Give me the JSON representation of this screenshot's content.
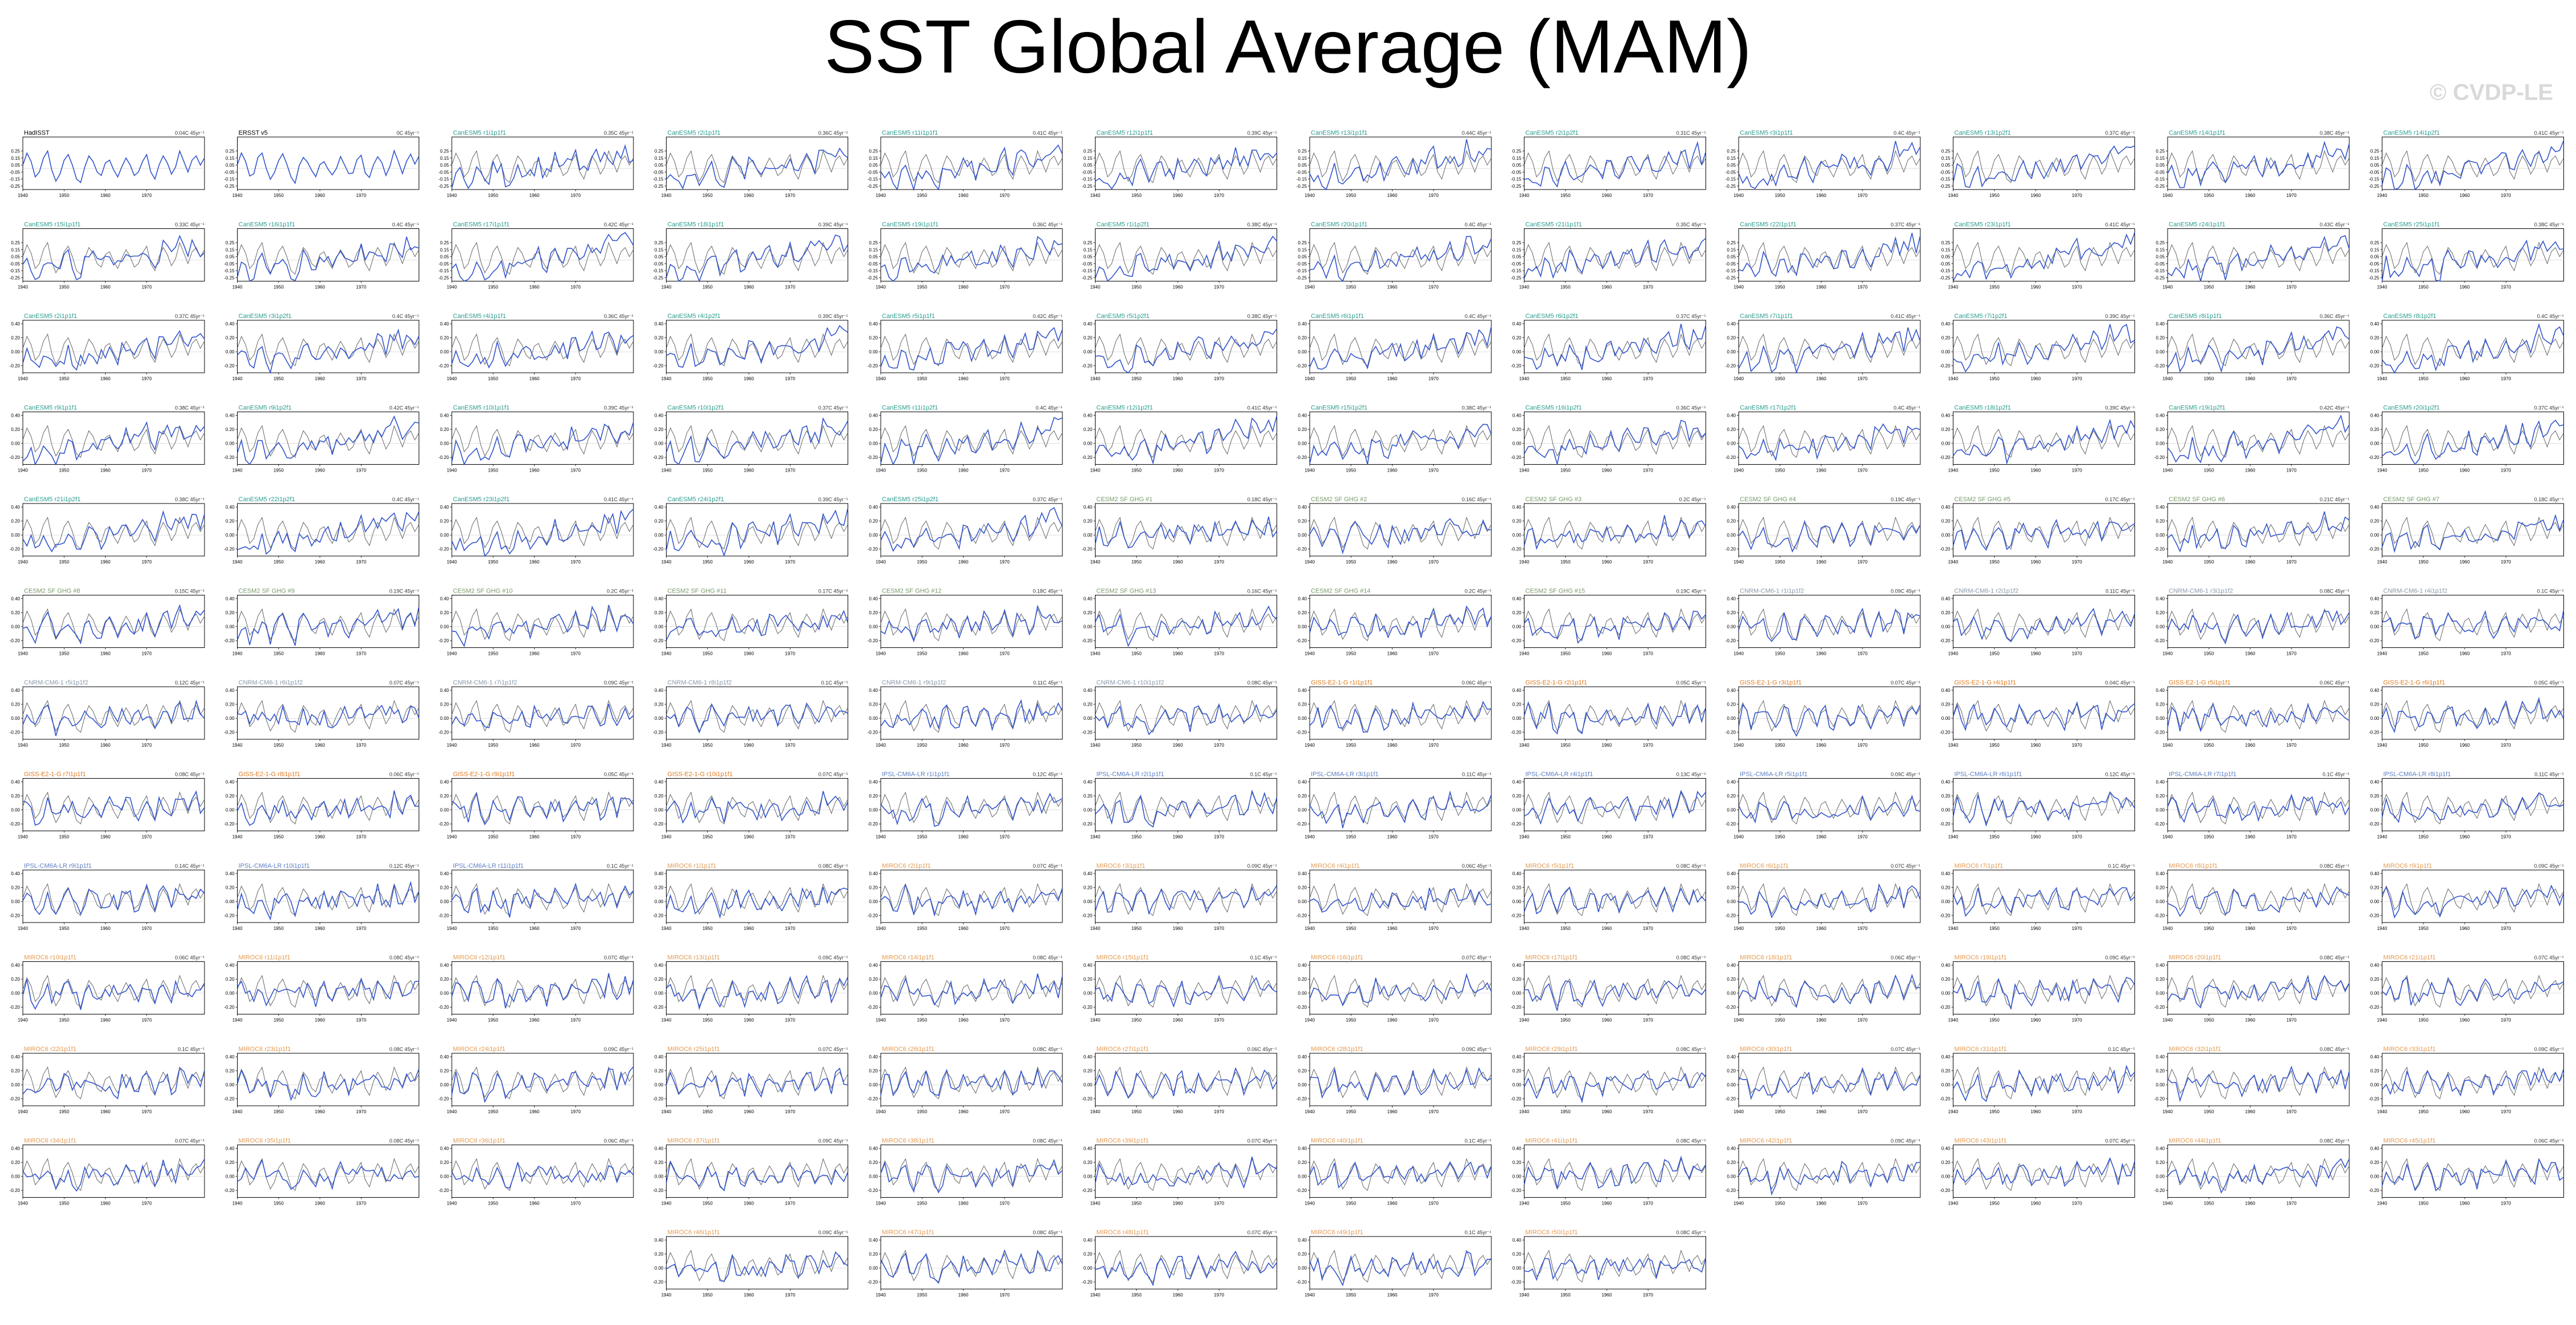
{
  "title": "SST Global Average (MAM)",
  "watermark": "© CVDP-LE",
  "colors": {
    "model": "#3355cc",
    "obs": "#666666",
    "title_obs": "#000000",
    "title_cesm2": "#2a9d8f",
    "title_cesm1": "#7a9a6a",
    "title_cnrm": "#8899aa",
    "title_giss": "#e07a1f",
    "title_ipsl": "#5b7fc4",
    "title_miroc": "#e39a52"
  },
  "chart_data": {
    "type": "line",
    "panel_layout": "12 columns x 13 rows; last row centered (2 panels)",
    "xlim": [
      1940,
      1984
    ],
    "xticks": [
      "1940",
      "1950",
      "1960",
      "1970"
    ],
    "ylim": [
      -0.3,
      0.45
    ],
    "yticks_low": [
      "0.25",
      "0.15",
      "0.05",
      "-0.05",
      "-0.15",
      "-0.25"
    ],
    "yticks_high": [
      "0.40",
      "0.20",
      "0.00",
      "-0.20"
    ],
    "observed_reference": {
      "name": "HadISST",
      "start_year": 1940,
      "end_year": 1984,
      "values": [
        0.05,
        0.22,
        0.1,
        -0.12,
        -0.05,
        0.15,
        0.25,
        -0.02,
        -0.18,
        -0.08,
        0.12,
        0.2,
        0.05,
        -0.15,
        -0.2,
        0.02,
        0.18,
        0.1,
        -0.05,
        -0.1,
        0.08,
        0.12,
        -0.02,
        -0.12,
        0.03,
        0.15,
        0.05,
        -0.1,
        -0.05,
        0.1,
        0.2,
        -0.05,
        -0.15,
        0.05,
        0.18,
        0.08,
        -0.08,
        0.02,
        0.25,
        0.1,
        -0.05,
        0.12,
        0.18,
        0.05,
        0.15
      ]
    },
    "panels": [
      {
        "title": "HadISST",
        "trend": "0.04C 45yr⁻¹",
        "group": "obs"
      },
      {
        "title": "ERSST v5",
        "trend": "0C 45yr⁻¹",
        "group": "obs"
      },
      {
        "title": "CanESM5 r1i1p1f1",
        "trend": "0.35C 45yr⁻¹",
        "group": "cesm2"
      },
      {
        "title": "CanESM5 r2i1p1f1",
        "trend": "0.36C 45yr⁻¹",
        "group": "cesm2"
      },
      {
        "title": "CanESM5 r11i1p1f1",
        "trend": "0.41C 45yr⁻¹",
        "group": "cesm2"
      },
      {
        "title": "CanESM5 r12i1p1f1",
        "trend": "0.39C 45yr⁻¹",
        "group": "cesm2"
      },
      {
        "title": "CanESM5 r13i1p1f1",
        "trend": "0.44C 45yr⁻¹",
        "group": "cesm2"
      },
      {
        "title": "CanESM5 r2i1p2f1",
        "trend": "0.31C 45yr⁻¹",
        "group": "cesm2"
      },
      {
        "title": "CanESM5 r3i1p1f1",
        "trend": "0.4C 45yr⁻¹",
        "group": "cesm2"
      },
      {
        "title": "CanESM5 r13i1p2f1",
        "trend": "0.37C 45yr⁻¹",
        "group": "cesm2"
      },
      {
        "title": "CanESM5 r14i1p1f1",
        "trend": "0.38C 45yr⁻¹",
        "group": "cesm2"
      },
      {
        "title": "CanESM5 r14i1p2f1",
        "trend": "0.41C 45yr⁻¹",
        "group": "cesm2"
      },
      {
        "title": "CanESM5 r15i1p1f1",
        "trend": "0.33C 45yr⁻¹",
        "group": "cesm2"
      },
      {
        "title": "CanESM5 r16i1p1f1",
        "trend": "0.4C 45yr⁻¹",
        "group": "cesm2"
      },
      {
        "title": "CanESM5 r17i1p1f1",
        "trend": "0.42C 45yr⁻¹",
        "group": "cesm2"
      },
      {
        "title": "CanESM5 r18i1p1f1",
        "trend": "0.39C 45yr⁻¹",
        "group": "cesm2"
      },
      {
        "title": "CanESM5 r19i1p1f1",
        "trend": "0.36C 45yr⁻¹",
        "group": "cesm2"
      },
      {
        "title": "CanESM5 r1i1p2f1",
        "trend": "0.38C 45yr⁻¹",
        "group": "cesm2"
      },
      {
        "title": "CanESM5 r20i1p1f1",
        "trend": "0.4C 45yr⁻¹",
        "group": "cesm2"
      },
      {
        "title": "CanESM5 r21i1p1f1",
        "trend": "0.35C 45yr⁻¹",
        "group": "cesm2"
      },
      {
        "title": "CanESM5 r22i1p1f1",
        "trend": "0.37C 45yr⁻¹",
        "group": "cesm2"
      },
      {
        "title": "CanESM5 r23i1p1f1",
        "trend": "0.41C 45yr⁻¹",
        "group": "cesm2"
      },
      {
        "title": "CanESM5 r24i1p1f1",
        "trend": "0.43C 45yr⁻¹",
        "group": "cesm2"
      },
      {
        "title": "CanESM5 r25i1p1f1",
        "trend": "0.38C 45yr⁻¹",
        "group": "cesm2"
      },
      {
        "title": "CanESM5 r2i1p1f1",
        "trend": "0.37C 45yr⁻¹",
        "group": "cesm2"
      },
      {
        "title": "CanESM5 r3i1p2f1",
        "trend": "0.4C 45yr⁻¹",
        "group": "cesm2"
      },
      {
        "title": "CanESM5 r4i1p1f1",
        "trend": "0.36C 45yr⁻¹",
        "group": "cesm2"
      },
      {
        "title": "CanESM5 r4i1p2f1",
        "trend": "0.39C 45yr⁻¹",
        "group": "cesm2"
      },
      {
        "title": "CanESM5 r5i1p1f1",
        "trend": "0.42C 45yr⁻¹",
        "group": "cesm2"
      },
      {
        "title": "CanESM5 r5i1p2f1",
        "trend": "0.38C 45yr⁻¹",
        "group": "cesm2"
      },
      {
        "title": "CanESM5 r6i1p1f1",
        "trend": "0.4C 45yr⁻¹",
        "group": "cesm2"
      },
      {
        "title": "CanESM5 r6i1p2f1",
        "trend": "0.37C 45yr⁻¹",
        "group": "cesm2"
      },
      {
        "title": "CanESM5 r7i1p1f1",
        "trend": "0.41C 45yr⁻¹",
        "group": "cesm2"
      },
      {
        "title": "CanESM5 r7i1p2f1",
        "trend": "0.39C 45yr⁻¹",
        "group": "cesm2"
      },
      {
        "title": "CanESM5 r8i1p1f1",
        "trend": "0.36C 45yr⁻¹",
        "group": "cesm2"
      },
      {
        "title": "CanESM5 r8i1p2f1",
        "trend": "0.4C 45yr⁻¹",
        "group": "cesm2"
      },
      {
        "title": "CanESM5 r9i1p1f1",
        "trend": "0.38C 45yr⁻¹",
        "group": "cesm2"
      },
      {
        "title": "CanESM5 r9i1p2f1",
        "trend": "0.42C 45yr⁻¹",
        "group": "cesm2"
      },
      {
        "title": "CanESM5 r10i1p1f1",
        "trend": "0.39C 45yr⁻¹",
        "group": "cesm2"
      },
      {
        "title": "CanESM5 r10i1p2f1",
        "trend": "0.37C 45yr⁻¹",
        "group": "cesm2"
      },
      {
        "title": "CanESM5 r11i1p2f1",
        "trend": "0.4C 45yr⁻¹",
        "group": "cesm2"
      },
      {
        "title": "CanESM5 r12i1p2f1",
        "trend": "0.41C 45yr⁻¹",
        "group": "cesm2"
      },
      {
        "title": "CanESM5 r15i1p2f1",
        "trend": "0.38C 45yr⁻¹",
        "group": "cesm2"
      },
      {
        "title": "CanESM5 r16i1p2f1",
        "trend": "0.36C 45yr⁻¹",
        "group": "cesm2"
      },
      {
        "title": "CanESM5 r17i1p2f1",
        "trend": "0.4C 45yr⁻¹",
        "group": "cesm2"
      },
      {
        "title": "CanESM5 r18i1p2f1",
        "trend": "0.39C 45yr⁻¹",
        "group": "cesm2"
      },
      {
        "title": "CanESM5 r19i1p2f1",
        "trend": "0.42C 45yr⁻¹",
        "group": "cesm2"
      },
      {
        "title": "CanESM5 r20i1p2f1",
        "trend": "0.37C 45yr⁻¹",
        "group": "cesm2"
      },
      {
        "title": "CanESM5 r21i1p2f1",
        "trend": "0.38C 45yr⁻¹",
        "group": "cesm2"
      },
      {
        "title": "CanESM5 r22i1p2f1",
        "trend": "0.4C 45yr⁻¹",
        "group": "cesm2"
      },
      {
        "title": "CanESM5 r23i1p2f1",
        "trend": "0.41C 45yr⁻¹",
        "group": "cesm2"
      },
      {
        "title": "CanESM5 r24i1p2f1",
        "trend": "0.39C 45yr⁻¹",
        "group": "cesm2"
      },
      {
        "title": "CanESM5 r25i1p2f1",
        "trend": "0.37C 45yr⁻¹",
        "group": "cesm2"
      },
      {
        "title": "CESM2 SF GHG #1",
        "trend": "0.18C 45yr⁻¹",
        "group": "cesm1"
      },
      {
        "title": "CESM2 SF GHG #2",
        "trend": "0.16C 45yr⁻¹",
        "group": "cesm1"
      },
      {
        "title": "CESM2 SF GHG #3",
        "trend": "0.2C 45yr⁻¹",
        "group": "cesm1"
      },
      {
        "title": "CESM2 SF GHG #4",
        "trend": "0.19C 45yr⁻¹",
        "group": "cesm1"
      },
      {
        "title": "CESM2 SF GHG #5",
        "trend": "0.17C 45yr⁻¹",
        "group": "cesm1"
      },
      {
        "title": "CESM2 SF GHG #6",
        "trend": "0.21C 45yr⁻¹",
        "group": "cesm1"
      },
      {
        "title": "CESM2 SF GHG #7",
        "trend": "0.18C 45yr⁻¹",
        "group": "cesm1"
      },
      {
        "title": "CESM2 SF GHG #8",
        "trend": "0.15C 45yr⁻¹",
        "group": "cesm1"
      },
      {
        "title": "CESM2 SF GHG #9",
        "trend": "0.19C 45yr⁻¹",
        "group": "cesm1"
      },
      {
        "title": "CESM2 SF GHG #10",
        "trend": "0.2C 45yr⁻¹",
        "group": "cesm1"
      },
      {
        "title": "CESM2 SF GHG #11",
        "trend": "0.17C 45yr⁻¹",
        "group": "cesm1"
      },
      {
        "title": "CESM2 SF GHG #12",
        "trend": "0.18C 45yr⁻¹",
        "group": "cesm1"
      },
      {
        "title": "CESM2 SF GHG #13",
        "trend": "0.16C 45yr⁻¹",
        "group": "cesm1"
      },
      {
        "title": "CESM2 SF GHG #14",
        "trend": "0.2C 45yr⁻¹",
        "group": "cesm1"
      },
      {
        "title": "CESM2 SF GHG #15",
        "trend": "0.19C 45yr⁻¹",
        "group": "cesm1"
      },
      {
        "title": "CNRM-CM6-1 r1i1p1f2",
        "trend": "0.09C 45yr⁻¹",
        "group": "cnrm"
      },
      {
        "title": "CNRM-CM6-1 r2i1p1f2",
        "trend": "0.11C 45yr⁻¹",
        "group": "cnrm"
      },
      {
        "title": "CNRM-CM6-1 r3i1p1f2",
        "trend": "0.08C 45yr⁻¹",
        "group": "cnrm"
      },
      {
        "title": "CNRM-CM6-1 r4i1p1f2",
        "trend": "0.1C 45yr⁻¹",
        "group": "cnrm"
      },
      {
        "title": "CNRM-CM6-1 r5i1p1f2",
        "trend": "0.12C 45yr⁻¹",
        "group": "cnrm"
      },
      {
        "title": "CNRM-CM6-1 r6i1p1f2",
        "trend": "0.07C 45yr⁻¹",
        "group": "cnrm"
      },
      {
        "title": "CNRM-CM6-1 r7i1p1f2",
        "trend": "0.09C 45yr⁻¹",
        "group": "cnrm"
      },
      {
        "title": "CNRM-CM6-1 r8i1p1f2",
        "trend": "0.1C 45yr⁻¹",
        "group": "cnrm"
      },
      {
        "title": "CNRM-CM6-1 r9i1p1f2",
        "trend": "0.11C 45yr⁻¹",
        "group": "cnrm"
      },
      {
        "title": "CNRM-CM6-1 r10i1p1f2",
        "trend": "0.08C 45yr⁻¹",
        "group": "cnrm"
      },
      {
        "title": "GISS-E2-1-G r1i1p1f1",
        "trend": "0.06C 45yr⁻¹",
        "group": "giss"
      },
      {
        "title": "GISS-E2-1-G r2i1p1f1",
        "trend": "0.05C 45yr⁻¹",
        "group": "giss"
      },
      {
        "title": "GISS-E2-1-G r3i1p1f1",
        "trend": "0.07C 45yr⁻¹",
        "group": "giss"
      },
      {
        "title": "GISS-E2-1-G r4i1p1f1",
        "trend": "0.04C 45yr⁻¹",
        "group": "giss"
      },
      {
        "title": "GISS-E2-1-G r5i1p1f1",
        "trend": "0.06C 45yr⁻¹",
        "group": "giss"
      },
      {
        "title": "GISS-E2-1-G r6i1p1f1",
        "trend": "0.05C 45yr⁻¹",
        "group": "giss"
      },
      {
        "title": "GISS-E2-1-G r7i1p1f1",
        "trend": "0.08C 45yr⁻¹",
        "group": "giss"
      },
      {
        "title": "GISS-E2-1-G r8i1p1f1",
        "trend": "0.06C 45yr⁻¹",
        "group": "giss"
      },
      {
        "title": "GISS-E2-1-G r9i1p1f1",
        "trend": "0.05C 45yr⁻¹",
        "group": "giss"
      },
      {
        "title": "GISS-E2-1-G r10i1p1f1",
        "trend": "0.07C 45yr⁻¹",
        "group": "giss"
      },
      {
        "title": "IPSL-CM6A-LR r1i1p1f1",
        "trend": "0.12C 45yr⁻¹",
        "group": "ipsl"
      },
      {
        "title": "IPSL-CM6A-LR r2i1p1f1",
        "trend": "0.1C 45yr⁻¹",
        "group": "ipsl"
      },
      {
        "title": "IPSL-CM6A-LR r3i1p1f1",
        "trend": "0.11C 45yr⁻¹",
        "group": "ipsl"
      },
      {
        "title": "IPSL-CM6A-LR r4i1p1f1",
        "trend": "0.13C 45yr⁻¹",
        "group": "ipsl"
      },
      {
        "title": "IPSL-CM6A-LR r5i1p1f1",
        "trend": "0.09C 45yr⁻¹",
        "group": "ipsl"
      },
      {
        "title": "IPSL-CM6A-LR r6i1p1f1",
        "trend": "0.12C 45yr⁻¹",
        "group": "ipsl"
      },
      {
        "title": "IPSL-CM6A-LR r7i1p1f1",
        "trend": "0.1C 45yr⁻¹",
        "group": "ipsl"
      },
      {
        "title": "IPSL-CM6A-LR r8i1p1f1",
        "trend": "0.11C 45yr⁻¹",
        "group": "ipsl"
      },
      {
        "title": "IPSL-CM6A-LR r9i1p1f1",
        "trend": "0.14C 45yr⁻¹",
        "group": "ipsl"
      },
      {
        "title": "IPSL-CM6A-LR r10i1p1f1",
        "trend": "0.12C 45yr⁻¹",
        "group": "ipsl"
      },
      {
        "title": "IPSL-CM6A-LR r11i1p1f1",
        "trend": "0.1C 45yr⁻¹",
        "group": "ipsl"
      },
      {
        "title": "MIROC6 r1i1p1f1",
        "trend": "0.08C 45yr⁻¹",
        "group": "miroc"
      },
      {
        "title": "MIROC6 r2i1p1f1",
        "trend": "0.07C 45yr⁻¹",
        "group": "miroc"
      },
      {
        "title": "MIROC6 r3i1p1f1",
        "trend": "0.09C 45yr⁻¹",
        "group": "miroc"
      },
      {
        "title": "MIROC6 r4i1p1f1",
        "trend": "0.06C 45yr⁻¹",
        "group": "miroc"
      },
      {
        "title": "MIROC6 r5i1p1f1",
        "trend": "0.08C 45yr⁻¹",
        "group": "miroc"
      },
      {
        "title": "MIROC6 r6i1p1f1",
        "trend": "0.07C 45yr⁻¹",
        "group": "miroc"
      },
      {
        "title": "MIROC6 r7i1p1f1",
        "trend": "0.1C 45yr⁻¹",
        "group": "miroc"
      },
      {
        "title": "MIROC6 r8i1p1f1",
        "trend": "0.08C 45yr⁻¹",
        "group": "miroc"
      },
      {
        "title": "MIROC6 r9i1p1f1",
        "trend": "0.09C 45yr⁻¹",
        "group": "miroc"
      },
      {
        "title": "MIROC6 r10i1p1f1",
        "trend": "0.06C 45yr⁻¹",
        "group": "miroc"
      },
      {
        "title": "MIROC6 r11i1p1f1",
        "trend": "0.08C 45yr⁻¹",
        "group": "miroc"
      },
      {
        "title": "MIROC6 r12i1p1f1",
        "trend": "0.07C 45yr⁻¹",
        "group": "miroc"
      },
      {
        "title": "MIROC6 r13i1p1f1",
        "trend": "0.09C 45yr⁻¹",
        "group": "miroc"
      },
      {
        "title": "MIROC6 r14i1p1f1",
        "trend": "0.08C 45yr⁻¹",
        "group": "miroc"
      },
      {
        "title": "MIROC6 r15i1p1f1",
        "trend": "0.1C 45yr⁻¹",
        "group": "miroc"
      },
      {
        "title": "MIROC6 r16i1p1f1",
        "trend": "0.07C 45yr⁻¹",
        "group": "miroc"
      },
      {
        "title": "MIROC6 r17i1p1f1",
        "trend": "0.08C 45yr⁻¹",
        "group": "miroc"
      },
      {
        "title": "MIROC6 r18i1p1f1",
        "trend": "0.06C 45yr⁻¹",
        "group": "miroc"
      },
      {
        "title": "MIROC6 r19i1p1f1",
        "trend": "0.09C 45yr⁻¹",
        "group": "miroc"
      },
      {
        "title": "MIROC6 r20i1p1f1",
        "trend": "0.08C 45yr⁻¹",
        "group": "miroc"
      },
      {
        "title": "MIROC6 r21i1p1f1",
        "trend": "0.07C 45yr⁻¹",
        "group": "miroc"
      },
      {
        "title": "MIROC6 r22i1p1f1",
        "trend": "0.1C 45yr⁻¹",
        "group": "miroc"
      },
      {
        "title": "MIROC6 r23i1p1f1",
        "trend": "0.08C 45yr⁻¹",
        "group": "miroc"
      },
      {
        "title": "MIROC6 r24i1p1f1",
        "trend": "0.09C 45yr⁻¹",
        "group": "miroc"
      },
      {
        "title": "MIROC6 r25i1p1f1",
        "trend": "0.07C 45yr⁻¹",
        "group": "miroc"
      },
      {
        "title": "MIROC6 r26i1p1f1",
        "trend": "0.08C 45yr⁻¹",
        "group": "miroc"
      },
      {
        "title": "MIROC6 r27i1p1f1",
        "trend": "0.06C 45yr⁻¹",
        "group": "miroc"
      },
      {
        "title": "MIROC6 r28i1p1f1",
        "trend": "0.09C 45yr⁻¹",
        "group": "miroc"
      },
      {
        "title": "MIROC6 r29i1p1f1",
        "trend": "0.08C 45yr⁻¹",
        "group": "miroc"
      },
      {
        "title": "MIROC6 r30i1p1f1",
        "trend": "0.07C 45yr⁻¹",
        "group": "miroc"
      },
      {
        "title": "MIROC6 r31i1p1f1",
        "trend": "0.1C 45yr⁻¹",
        "group": "miroc"
      },
      {
        "title": "MIROC6 r32i1p1f1",
        "trend": "0.08C 45yr⁻¹",
        "group": "miroc"
      },
      {
        "title": "MIROC6 r33i1p1f1",
        "trend": "0.09C 45yr⁻¹",
        "group": "miroc"
      },
      {
        "title": "MIROC6 r34i1p1f1",
        "trend": "0.07C 45yr⁻¹",
        "group": "miroc"
      },
      {
        "title": "MIROC6 r35i1p1f1",
        "trend": "0.08C 45yr⁻¹",
        "group": "miroc"
      },
      {
        "title": "MIROC6 r36i1p1f1",
        "trend": "0.06C 45yr⁻¹",
        "group": "miroc"
      },
      {
        "title": "MIROC6 r37i1p1f1",
        "trend": "0.09C 45yr⁻¹",
        "group": "miroc"
      },
      {
        "title": "MIROC6 r38i1p1f1",
        "trend": "0.08C 45yr⁻¹",
        "group": "miroc"
      },
      {
        "title": "MIROC6 r39i1p1f1",
        "trend": "0.07C 45yr⁻¹",
        "group": "miroc"
      },
      {
        "title": "MIROC6 r40i1p1f1",
        "trend": "0.1C 45yr⁻¹",
        "group": "miroc"
      },
      {
        "title": "MIROC6 r41i1p1f1",
        "trend": "0.08C 45yr⁻¹",
        "group": "miroc"
      },
      {
        "title": "MIROC6 r42i1p1f1",
        "trend": "0.09C 45yr⁻¹",
        "group": "miroc"
      },
      {
        "title": "MIROC6 r43i1p1f1",
        "trend": "0.07C 45yr⁻¹",
        "group": "miroc"
      },
      {
        "title": "MIROC6 r44i1p1f1",
        "trend": "0.08C 45yr⁻¹",
        "group": "miroc"
      },
      {
        "title": "MIROC6 r45i1p1f1",
        "trend": "0.06C 45yr⁻¹",
        "group": "miroc"
      },
      {
        "title": "MIROC6 r46i1p1f1",
        "trend": "0.09C 45yr⁻¹",
        "group": "miroc"
      },
      {
        "title": "MIROC6 r47i1p1f1",
        "trend": "0.08C 45yr⁻¹",
        "group": "miroc"
      },
      {
        "title": "MIROC6 r48i1p1f1",
        "trend": "0.07C 45yr⁻¹",
        "group": "miroc"
      },
      {
        "title": "MIROC6 r49i1p1f1",
        "trend": "0.1C 45yr⁻¹",
        "group": "miroc"
      },
      {
        "title": "MIROC6 r50i1p1f1",
        "trend": "0.08C 45yr⁻¹",
        "group": "miroc"
      }
    ]
  }
}
